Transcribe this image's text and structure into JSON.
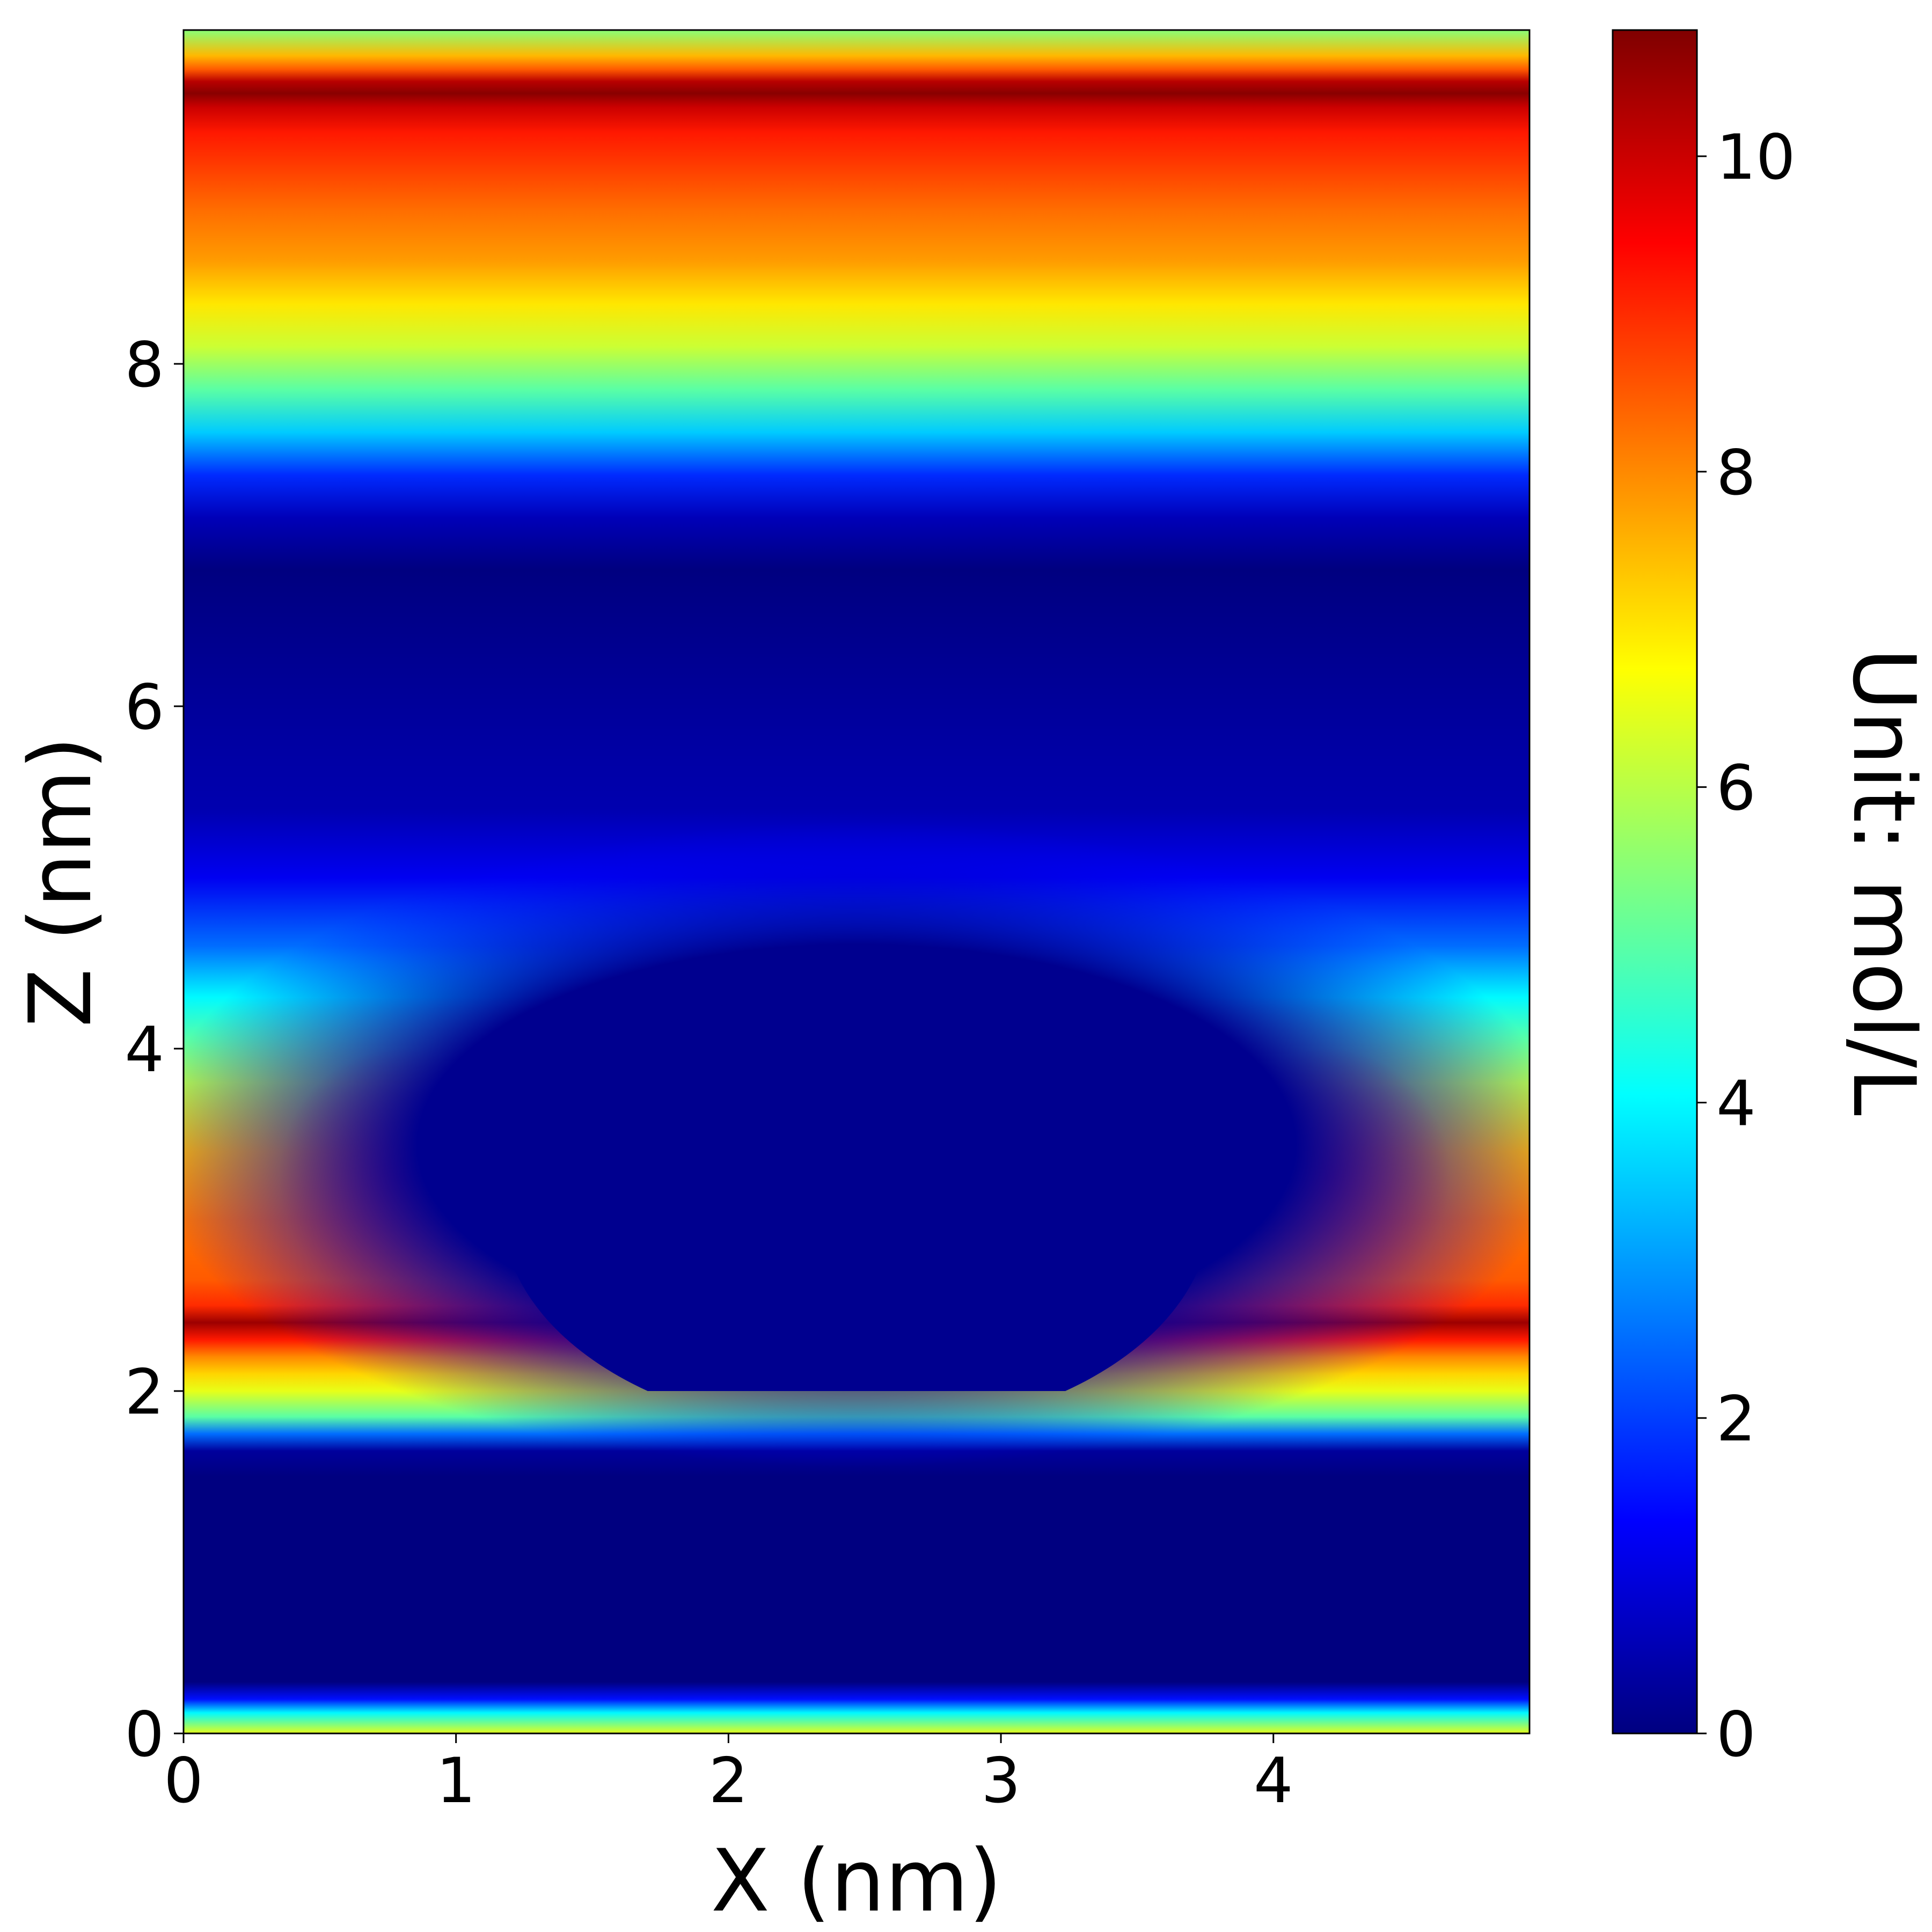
{
  "chart_data": {
    "type": "heatmap",
    "title": "",
    "xlabel": "X (nm)",
    "ylabel": "Z (nm)",
    "xlim": [
      0,
      4.94
    ],
    "ylim": [
      0,
      9.95
    ],
    "xticks": [
      0,
      1,
      2,
      3,
      4
    ],
    "yticks": [
      0,
      2,
      4,
      6,
      8
    ],
    "xtick_labels": [
      "0",
      "1",
      "2",
      "3",
      "4"
    ],
    "ytick_labels": [
      "0",
      "2",
      "4",
      "6",
      "8"
    ],
    "colorbar": {
      "label": "Unit: mol/L",
      "colormap": "jet",
      "range": [
        0,
        10.8
      ],
      "ticks": [
        0,
        2,
        4,
        6,
        8,
        10
      ],
      "tick_labels": [
        "0",
        "2",
        "4",
        "6",
        "8",
        "10"
      ]
    },
    "grid": false,
    "profile_far_field": {
      "z": [
        0.0,
        0.12,
        0.2,
        0.3,
        1.5,
        1.65,
        1.75,
        1.85,
        2.0,
        2.1,
        2.2,
        2.3,
        2.4,
        2.5,
        2.65,
        3.0,
        3.4,
        3.8,
        4.05,
        4.3,
        4.6,
        5.0,
        5.4,
        6.8,
        7.1,
        7.35,
        7.6,
        7.85,
        8.1,
        8.35,
        8.6,
        8.9,
        9.15,
        9.35,
        9.5,
        9.58,
        9.65,
        9.72,
        9.8,
        9.95
      ],
      "concentration": [
        6.5,
        4.0,
        1.5,
        0.0,
        0.0,
        0.3,
        2.5,
        5.0,
        6.5,
        7.2,
        8.0,
        9.2,
        10.5,
        9.0,
        8.5,
        8.2,
        7.5,
        6.0,
        5.0,
        4.0,
        2.5,
        1.2,
        0.5,
        0.0,
        0.6,
        1.8,
        3.5,
        5.0,
        6.2,
        7.0,
        7.8,
        8.3,
        8.8,
        9.2,
        10.0,
        10.7,
        10.2,
        8.5,
        7.5,
        5.5
      ]
    },
    "profile_local_peak": {
      "x": [
        0.8,
        4.2
      ],
      "z": [
        3.0,
        3.5
      ],
      "concentration": [
        9.0,
        9.0
      ]
    },
    "depletion_region": {
      "shape": "sphere-cap",
      "center_x": 2.47,
      "center_z": 3.05,
      "radius_x": 1.3,
      "radius_z": 1.3,
      "z_min": 2.0,
      "concentration": 0.0
    }
  }
}
